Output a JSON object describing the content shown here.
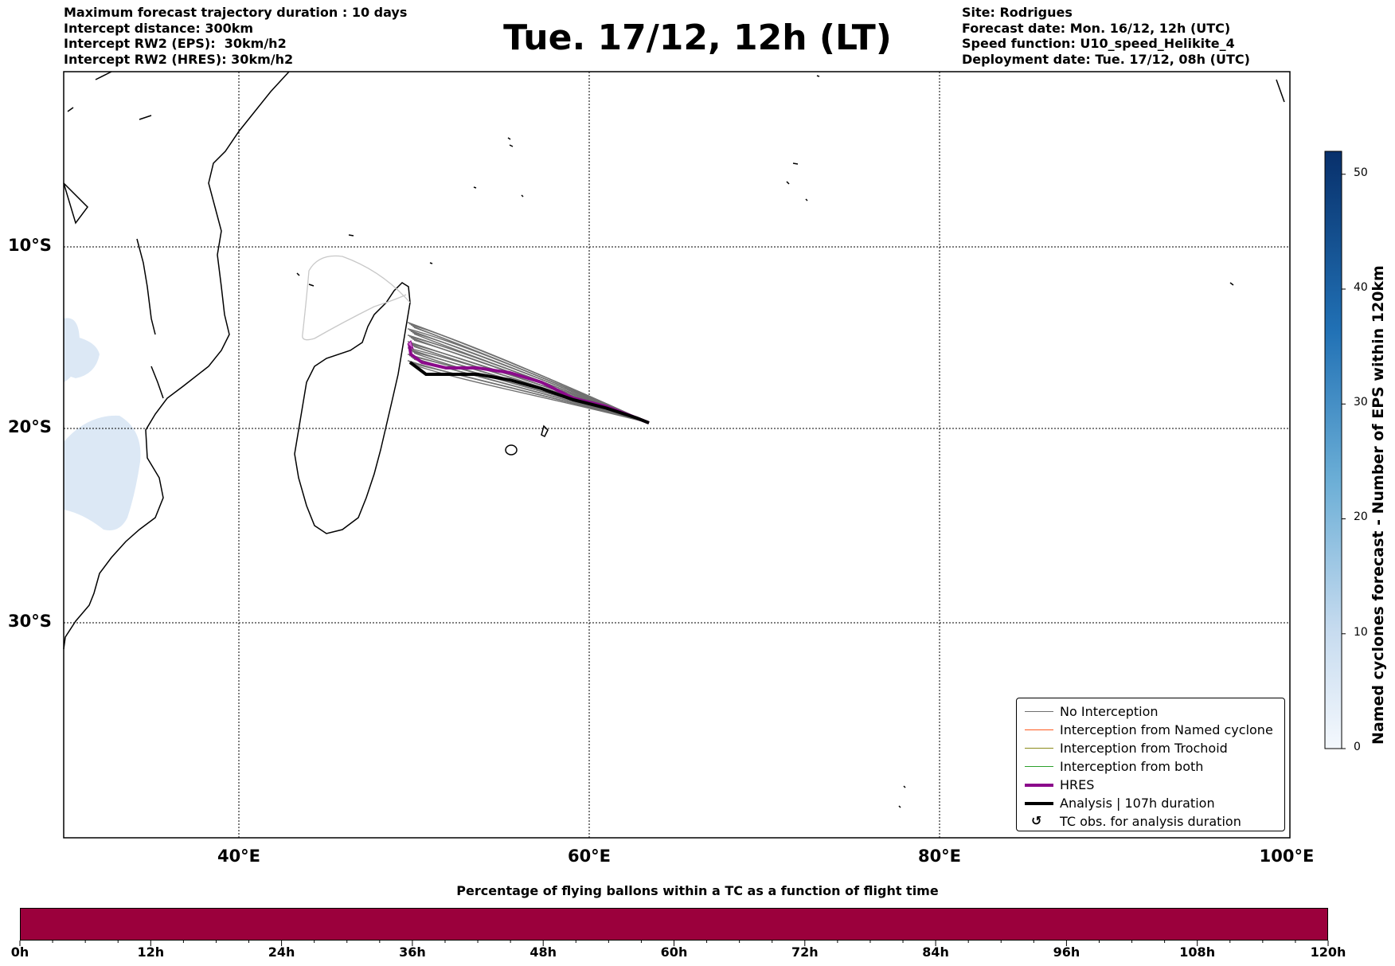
{
  "header": {
    "left_lines": [
      "Maximum forecast trajectory duration : 10 days",
      "Intercept distance: 300km",
      "Intercept RW2 (EPS):  30km/h2",
      "Intercept RW2 (HRES): 30km/h2"
    ],
    "title": "Tue. 17/12, 12h (LT)",
    "right_lines": [
      "Site: Rodrigues",
      "Forecast date: Mon. 16/12, 12h (UTC)",
      "Speed function: U10_speed_Helikite_4",
      "Deployment date: Tue. 17/12, 08h (UTC)"
    ]
  },
  "map": {
    "lat_labels": [
      "10°S",
      "20°S",
      "30°S"
    ],
    "lon_labels": [
      "40°E",
      "60°E",
      "80°E",
      "100°E"
    ],
    "lon_range": [
      30,
      100
    ],
    "lat_range": [
      -45,
      -0.2
    ],
    "colors": {
      "no_interception": "#707070",
      "named_cyclone": "#ff5a1f",
      "trochoid": "#8b8b1a",
      "both": "#2ca02c",
      "hres": "#8b0a8b",
      "analysis": "#000000",
      "cyclone_shading": "#dce8f5"
    }
  },
  "legend": {
    "items": [
      {
        "label": "No Interception",
        "color": "#707070",
        "kind": "line"
      },
      {
        "label": "Interception from Named cyclone",
        "color": "#ff5a1f",
        "kind": "line"
      },
      {
        "label": "Interception from Trochoid",
        "color": "#8b8b1a",
        "kind": "line"
      },
      {
        "label": "Interception from both",
        "color": "#2ca02c",
        "kind": "line"
      },
      {
        "label": "HRES",
        "color": "#8b0a8b",
        "kind": "thick"
      },
      {
        "label": "Analysis | 107h duration",
        "color": "#000000",
        "kind": "thick"
      },
      {
        "label": "TC obs. for analysis duration",
        "color": "#000000",
        "kind": "symbol",
        "symbol": "↺"
      }
    ]
  },
  "colorbar": {
    "title": "Named cyclones forecast - Number of EPS within 120km",
    "ticks": [
      "0",
      "10",
      "20",
      "30",
      "40",
      "50"
    ],
    "min": 0,
    "max": 52
  },
  "flight_bar": {
    "title": "Percentage of flying ballons within a TC as a function of flight time",
    "labels": [
      "0h",
      "12h",
      "24h",
      "36h",
      "48h",
      "60h",
      "72h",
      "84h",
      "96h",
      "108h",
      "120h"
    ],
    "fill_color": "#9b003c"
  }
}
